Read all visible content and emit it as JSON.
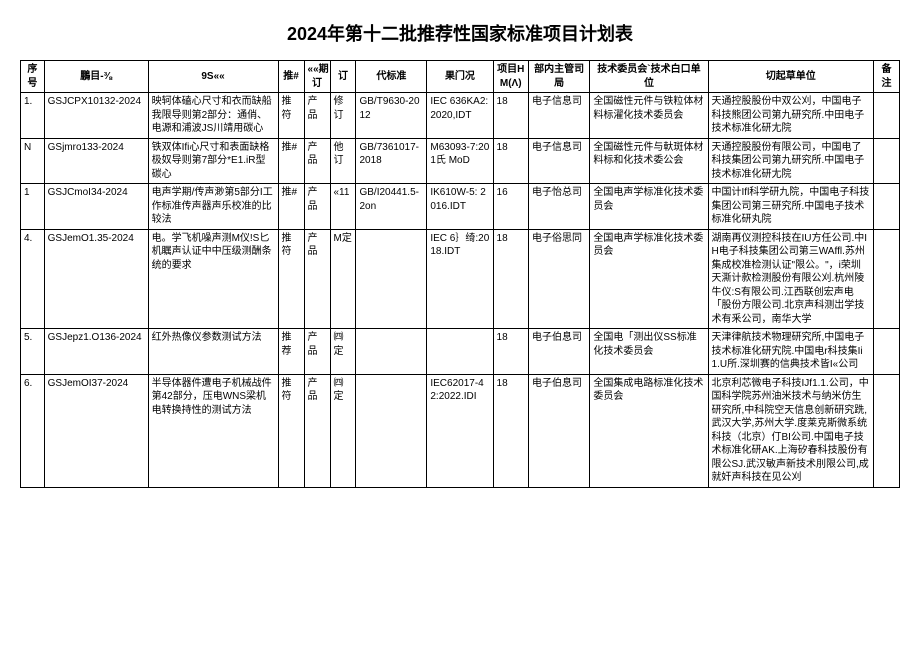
{
  "title": "2024年第十二批推荐性国家标准项目计划表",
  "headers": {
    "seq": "序号",
    "plan": "鵬目-⅜",
    "name": "9S««",
    "rec": "推#",
    "kind": "««期订",
    "rev": "订",
    "repl": "代标准",
    "intl": "果门况",
    "mon": "项目HM(Λ)",
    "dept": "部内主管司局",
    "tc": "技术委员会`技术白口单位",
    "draft": "切起草单位",
    "note": "备注"
  },
  "rows": [
    {
      "seq": "1.",
      "plan": "GSJCPX10132-2024",
      "name": "映轲体磕心尺寸和衣而缺船我限导则第2部分：通俏、电源和浦波JS川靖用碳心",
      "rec": "推符",
      "kind": "产品",
      "rev": "修订",
      "repl": "GB/T9630-2012",
      "intl": "IEC 636KA2: 2020,IDT",
      "mon": "18",
      "dept": "电子信息司",
      "tc": "全国磁性元件与铁粒体材料标濯化技术委员会",
      "draft": "天通控股股份中双公刈，中国电子科技熊团公司第九研究所.中田电子技术标准化研尢院"
    },
    {
      "seq": "N",
      "plan": "GSjmro133-2024",
      "name": "铁双体Ifi心尺寸和表面缺格极奴导则第7部分*E1.iR型碳心",
      "rec": "推#",
      "kind": "产品",
      "rev": "他订",
      "repl": "GB/7361017-2018",
      "intl": "M63093-7:201氏 MoD",
      "mon": "18",
      "dept": "电子信息司",
      "tc": "全国磁性元件与軑斑体材料标和化技术委公会",
      "draft": "天通控股股份有限公司，中国电了科技集团公司第九研究所.中国电子技术标准化研尢院"
    },
    {
      "seq": "1",
      "plan": "GSJCmoI34-2024",
      "name": "电声学期/传声渺第5部分I工作标准传声器声乐校准的比较法",
      "rec": "推#",
      "kind": "产品",
      "rev": "«11",
      "repl": "GB/I20441.5-2on",
      "intl": "IK610W-5: 2016.IDT",
      "mon": "16",
      "dept": "电子怡总司",
      "tc": "全国电声学标准化技术委员会",
      "draft": "中国计Ifl科学研九院，中国电子科技集团公司第三研究所.中国电子技术标准化研丸院"
    },
    {
      "seq": "4.",
      "plan": "GSJemO1.35-2024",
      "name": "电。学飞机噪声测M仪!S匕机瞩声认证中中压级测酬条统的要求",
      "rec": "推符",
      "kind": "产品",
      "rev": "M定",
      "repl": "",
      "intl": "IEC 6｝绮:20 18.IDT",
      "mon": "18",
      "dept": "电子俗思同",
      "tc": "全国电声学标准化技术委员会",
      "draft": "湖南再仪测控科技在IU方任公司.中IH电子科技集团公司第三WAffl.苏州集成校准检测认证\"限公。\"，i荣圳天澌计款检测股份有限公刈.杭州陵牛仪:S有限公司.江西联创宏声电「股份方限公司.北京声科测岀学技术有釆公司，南华大学"
    },
    {
      "seq": "5.",
      "plan": "GSJepz1.O136-2024",
      "name": "红外热像仪参数测试方法",
      "rec": "推荐",
      "kind": "产品",
      "rev": "㈣定",
      "repl": "",
      "intl": "",
      "mon": "18",
      "dept": "电子伯息司",
      "tc": "全国电「测出仪SS标准化技术委员会",
      "draft": "天津律航技术物理研究所,中国电子技术标准化研宄院.中国电r科技集Ii1.U所.深圳赛的信典技术皆I«公司"
    },
    {
      "seq": "6.",
      "plan": "GSJemOI37-2024",
      "name": "半导体器件遭电子机械战件第42部分，压电WNS梁机电转换持性的测试方法",
      "rec": "推符",
      "kind": "产品",
      "rev": "㈣定",
      "repl": "",
      "intl": "IEC62017-42:2022.IDI",
      "mon": "18",
      "dept": "电子伯息司",
      "tc": "全国集成电路标准化技术委员会",
      "draft": "北京利芯微电子科技IJf1.1.公司，中国科学院苏州油米技术与纳米仿生研究所,中科院空天信息创新研究跣,武汉大学,苏州大学.度莱克斯微系统科技（北京）仃BI公司.中国电子技术标准化研AK.上海矽春科技股份有限公SJ.武汉敏声新技术刖限公司,成就奸声科技在见公刈"
    }
  ]
}
